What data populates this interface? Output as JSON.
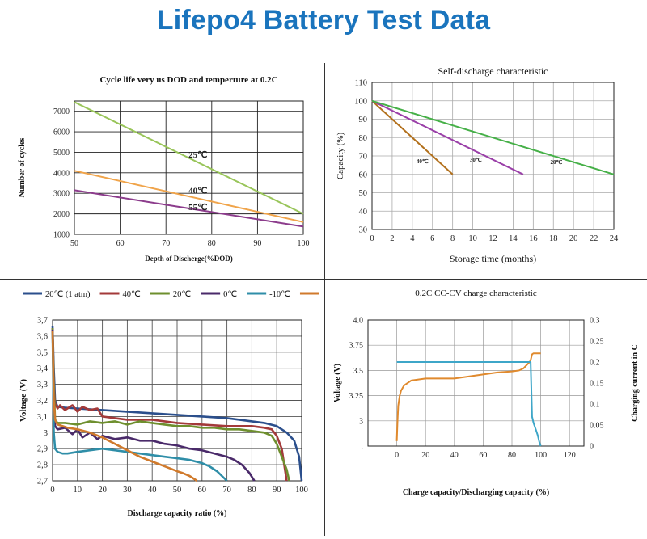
{
  "page": {
    "title": "Lifepo4 Battery Test Data"
  },
  "chart_data": [
    {
      "id": "cycle",
      "type": "line",
      "title": "Cycle life very us DOD and temperture  at 0.2C",
      "xlabel": "Depth  of  Discherge(%DOD)",
      "ylabel": "Number of cycles",
      "xlim": [
        50,
        100
      ],
      "ylim": [
        1000,
        7500
      ],
      "xticks": [
        50,
        60,
        70,
        80,
        90,
        100
      ],
      "yticks": [
        1000,
        2000,
        3000,
        4000,
        5000,
        6000,
        7000
      ],
      "grid": true,
      "series": [
        {
          "name": "25℃",
          "color": "#99c55a",
          "x": [
            50,
            100
          ],
          "y": [
            7450,
            2000
          ]
        },
        {
          "name": "40℃",
          "color": "#f0a44a",
          "x": [
            50,
            100
          ],
          "y": [
            4100,
            1600
          ]
        },
        {
          "name": "55℃",
          "color": "#8c3c8c",
          "x": [
            50,
            100
          ],
          "y": [
            3150,
            1380
          ]
        }
      ],
      "annotations": [
        {
          "text": "25℃",
          "x": 77,
          "y": 4750
        },
        {
          "text": "40℃",
          "x": 77,
          "y": 2980
        },
        {
          "text": "55℃",
          "x": 77,
          "y": 2180
        }
      ]
    },
    {
      "id": "selfdis",
      "type": "line",
      "title": "Self-discharge characteristic",
      "xlabel": "Storage time (months)",
      "ylabel": "Capacity (%)",
      "xlim": [
        0,
        24
      ],
      "ylim": [
        30,
        110
      ],
      "xticks": [
        0,
        2,
        4,
        6,
        8,
        10,
        12,
        14,
        16,
        18,
        20,
        22,
        24
      ],
      "yticks": [
        30,
        40,
        50,
        60,
        70,
        80,
        90,
        100,
        110
      ],
      "grid": true,
      "series": [
        {
          "name": "40℃",
          "color": "#b2701c",
          "x": [
            0,
            8
          ],
          "y": [
            100,
            60
          ]
        },
        {
          "name": "30℃",
          "color": "#9a3fa8",
          "x": [
            0,
            15
          ],
          "y": [
            100,
            60
          ]
        },
        {
          "name": "20℃",
          "color": "#46b048",
          "x": [
            0,
            24
          ],
          "y": [
            100,
            60
          ]
        }
      ],
      "annotations": [
        {
          "text": "40℃",
          "x": 5.0,
          "y": 66
        },
        {
          "text": "30℃",
          "x": 10.3,
          "y": 67
        },
        {
          "text": "20℃",
          "x": 18.3,
          "y": 65.5
        }
      ]
    },
    {
      "id": "temp",
      "type": "line",
      "title": "",
      "xlabel": "Discharge capacity ratio (%)",
      "ylabel": "Voltage (V)",
      "xlim": [
        0,
        100
      ],
      "ylim": [
        2.7,
        3.7
      ],
      "xticks": [
        0,
        10,
        20,
        30,
        40,
        50,
        60,
        70,
        80,
        90,
        100
      ],
      "yticks": [
        2.7,
        2.8,
        2.9,
        3.0,
        3.1,
        3.2,
        3.3,
        3.4,
        3.5,
        3.6,
        3.7
      ],
      "yticklabels": [
        "2,7",
        "2,8",
        "2,9",
        "3",
        "3,1",
        "3,2",
        "3,3",
        "3,4",
        "3,5",
        "3,6",
        "3,7"
      ],
      "grid": true,
      "legend_position": "top",
      "series": [
        {
          "name": "20℃ (1 atm)",
          "color": "#2b4f8c",
          "x": [
            0,
            0.5,
            1,
            2,
            5,
            10,
            20,
            30,
            40,
            50,
            60,
            70,
            80,
            85,
            90,
            94,
            97,
            99,
            100
          ],
          "y": [
            3.66,
            3.4,
            3.2,
            3.16,
            3.155,
            3.15,
            3.14,
            3.13,
            3.12,
            3.11,
            3.1,
            3.09,
            3.07,
            3.06,
            3.04,
            3.0,
            2.95,
            2.85,
            2.7
          ]
        },
        {
          "name": "40℃",
          "color": "#a33a3a",
          "x": [
            0,
            0.5,
            1,
            2,
            3,
            5,
            8,
            10,
            12,
            15,
            18,
            20,
            25,
            30,
            40,
            50,
            60,
            70,
            80,
            85,
            88,
            90,
            92,
            93,
            94
          ],
          "y": [
            3.65,
            3.3,
            3.18,
            3.15,
            3.17,
            3.14,
            3.17,
            3.13,
            3.16,
            3.14,
            3.15,
            3.1,
            3.09,
            3.08,
            3.08,
            3.06,
            3.05,
            3.04,
            3.04,
            3.03,
            3.02,
            2.98,
            2.9,
            2.8,
            2.7
          ]
        },
        {
          "name": "20℃",
          "color": "#6e8f2e",
          "x": [
            0,
            0.5,
            1,
            2,
            5,
            10,
            15,
            20,
            25,
            30,
            35,
            40,
            45,
            50,
            55,
            60,
            65,
            70,
            75,
            80,
            85,
            88,
            90,
            92,
            94,
            95
          ],
          "y": [
            3.65,
            3.3,
            3.08,
            3.06,
            3.06,
            3.05,
            3.07,
            3.06,
            3.07,
            3.05,
            3.07,
            3.06,
            3.05,
            3.04,
            3.04,
            3.03,
            3.03,
            3.02,
            3.02,
            3.01,
            3.0,
            2.98,
            2.93,
            2.85,
            2.77,
            2.7
          ]
        },
        {
          "name": "0℃",
          "color": "#4a2a6a",
          "x": [
            0,
            0.5,
            1,
            2,
            5,
            8,
            10,
            12,
            15,
            18,
            20,
            25,
            30,
            35,
            40,
            45,
            50,
            55,
            60,
            65,
            70,
            73,
            76,
            79,
            81
          ],
          "y": [
            3.64,
            3.2,
            3.04,
            3.02,
            3.03,
            2.99,
            3.02,
            2.97,
            3.0,
            2.96,
            2.98,
            2.96,
            2.97,
            2.95,
            2.95,
            2.93,
            2.92,
            2.9,
            2.89,
            2.87,
            2.85,
            2.83,
            2.8,
            2.75,
            2.7
          ]
        },
        {
          "name": "-10℃",
          "color": "#2f8ea8",
          "x": [
            0,
            0.5,
            1,
            2,
            4,
            6,
            10,
            15,
            20,
            25,
            30,
            35,
            40,
            45,
            50,
            55,
            60,
            63,
            66,
            68,
            70
          ],
          "y": [
            3.62,
            3.0,
            2.9,
            2.88,
            2.87,
            2.87,
            2.88,
            2.89,
            2.9,
            2.89,
            2.88,
            2.87,
            2.86,
            2.85,
            2.84,
            2.83,
            2.81,
            2.79,
            2.76,
            2.73,
            2.7
          ]
        },
        {
          "name": "-20℃",
          "color": "#d07a2c",
          "x": [
            0,
            0.5,
            1,
            2,
            4,
            6,
            10,
            15,
            20,
            25,
            30,
            35,
            40,
            45,
            50,
            52,
            55,
            57,
            58
          ],
          "y": [
            3.63,
            3.2,
            3.08,
            3.05,
            3.04,
            3.03,
            3.02,
            3.0,
            2.97,
            2.93,
            2.89,
            2.85,
            2.82,
            2.79,
            2.76,
            2.75,
            2.73,
            2.71,
            2.7
          ]
        }
      ]
    },
    {
      "id": "ccv",
      "type": "line",
      "title": "0.2C   CC-CV charge characteristic",
      "xlabel": "Charge capacity/Discharging capacity (%)",
      "ylabel": "Voltage (V)",
      "y2label": "Charging current in C",
      "xlim": [
        -20,
        130
      ],
      "ylim": [
        2.75,
        4.0
      ],
      "y2lim": [
        0,
        0.3
      ],
      "xticks": [
        0,
        20,
        40,
        60,
        80,
        100,
        120
      ],
      "yticks": [
        2.75,
        3.0,
        3.25,
        3.5,
        3.75,
        4.0
      ],
      "yticklabels": [
        ".",
        "3",
        "3.25",
        "3.5",
        "3.75",
        "4.0"
      ],
      "y2ticks": [
        0,
        0.05,
        0.1,
        0.15,
        0.2,
        0.25,
        0.3
      ],
      "y2ticklabels": [
        "0",
        "0.05",
        "0.1",
        "0.15",
        "0.2",
        "0.25",
        "0.3"
      ],
      "grid": true,
      "series": [
        {
          "name": "Voltage",
          "axis": "left",
          "color": "#e08a2e",
          "x": [
            0,
            0.5,
            1,
            2,
            3,
            5,
            8,
            10,
            15,
            20,
            30,
            40,
            50,
            60,
            70,
            80,
            85,
            88,
            90,
            92,
            93,
            94,
            95,
            100
          ],
          "y": [
            2.8,
            3.0,
            3.15,
            3.25,
            3.3,
            3.35,
            3.38,
            3.4,
            3.41,
            3.42,
            3.42,
            3.42,
            3.44,
            3.46,
            3.48,
            3.49,
            3.5,
            3.52,
            3.55,
            3.58,
            3.6,
            3.66,
            3.67,
            3.67
          ]
        },
        {
          "name": "Current",
          "axis": "right",
          "color": "#3ea6c8",
          "x": [
            0,
            30,
            60,
            90,
            93,
            94,
            95,
            96,
            97,
            98,
            99,
            100
          ],
          "y": [
            0.2,
            0.2,
            0.2,
            0.2,
            0.2,
            0.07,
            0.055,
            0.045,
            0.035,
            0.025,
            0.01,
            0.0
          ]
        }
      ]
    }
  ]
}
